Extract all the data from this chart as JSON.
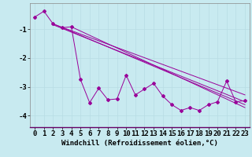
{
  "background_color": "#c8eaf0",
  "grid_color": "#b8dce4",
  "line_color": "#990099",
  "xlabel": "Windchill (Refroidissement éolien,°C)",
  "xlabel_fontsize": 6.5,
  "tick_fontsize": 6.5,
  "xlim": [
    -0.5,
    23.5
  ],
  "ylim": [
    -4.4,
    -0.1
  ],
  "yticks": [
    -4,
    -3,
    -2,
    -1
  ],
  "xticks": [
    0,
    1,
    2,
    3,
    4,
    5,
    6,
    7,
    8,
    9,
    10,
    11,
    12,
    13,
    14,
    15,
    16,
    17,
    18,
    19,
    20,
    21,
    22,
    23
  ],
  "zigzag_x": [
    0,
    1,
    2,
    3,
    4,
    5,
    6,
    7,
    8,
    9,
    10,
    11,
    12,
    13,
    14,
    15,
    16,
    17,
    18,
    19,
    20,
    21,
    22,
    23
  ],
  "zigzag_y": [
    -0.58,
    -0.38,
    -0.82,
    -0.95,
    -0.92,
    -2.75,
    -3.55,
    -3.05,
    -3.45,
    -3.42,
    -2.6,
    -3.28,
    -3.08,
    -2.88,
    -3.32,
    -3.62,
    -3.82,
    -3.72,
    -3.82,
    -3.62,
    -3.52,
    -2.8,
    -3.52,
    -3.48
  ],
  "diag_lines": [
    {
      "x": [
        2,
        23
      ],
      "y": [
        -0.82,
        -3.28
      ]
    },
    {
      "x": [
        2,
        23
      ],
      "y": [
        -0.85,
        -3.52
      ]
    },
    {
      "x": [
        3,
        23
      ],
      "y": [
        -0.95,
        -3.62
      ]
    },
    {
      "x": [
        4,
        23
      ],
      "y": [
        -0.92,
        -3.72
      ]
    }
  ]
}
